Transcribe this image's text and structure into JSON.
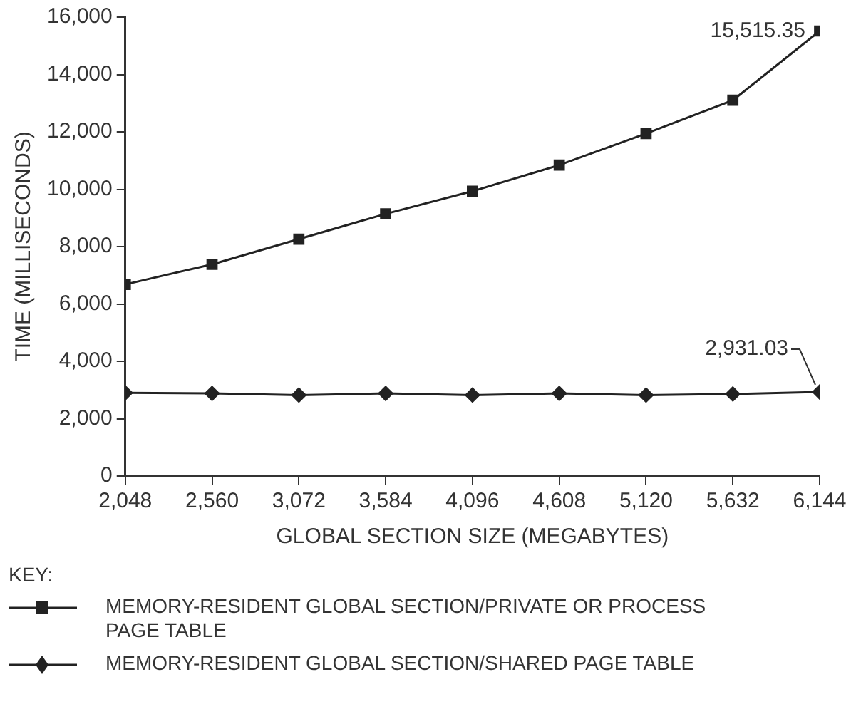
{
  "chart_data": {
    "type": "line",
    "xlabel": "GLOBAL SECTION SIZE (MEGABYTES)",
    "ylabel": "TIME (MILLISECONDS)",
    "legend_title": "KEY:",
    "x": [
      2048,
      2560,
      3072,
      3584,
      4096,
      4608,
      5120,
      5632,
      6144
    ],
    "xlim": [
      2048,
      6144
    ],
    "xticks": [
      {
        "value": 2048,
        "label": "2,048"
      },
      {
        "value": 2560,
        "label": "2,560"
      },
      {
        "value": 3072,
        "label": "3,072"
      },
      {
        "value": 3584,
        "label": "3,584"
      },
      {
        "value": 4096,
        "label": "4,096"
      },
      {
        "value": 4608,
        "label": "4,608"
      },
      {
        "value": 5120,
        "label": "5,120"
      },
      {
        "value": 5632,
        "label": "5,632"
      },
      {
        "value": 6144,
        "label": "6,144"
      }
    ],
    "ylim": [
      0,
      16000
    ],
    "yticks": [
      0,
      {
        "value": 2000,
        "label": "2,000"
      },
      {
        "value": 4000,
        "label": "4,000"
      },
      {
        "value": 6000,
        "label": "6,000"
      },
      {
        "value": 8000,
        "label": "8,000"
      },
      {
        "value": 10000,
        "label": "10,000"
      },
      {
        "value": 12000,
        "label": "12,000"
      },
      {
        "value": 14000,
        "label": "14,000"
      },
      {
        "value": 16000,
        "label": "16,000"
      }
    ],
    "series": [
      {
        "name": "MEMORY-RESIDENT GLOBAL SECTION/PRIVATE OR PROCESS PAGE TABLE",
        "color": "#222222",
        "marker": "square",
        "values": [
          6680,
          7380,
          8260,
          9140,
          9930,
          10840,
          11940,
          13100,
          15515.35
        ]
      },
      {
        "name": "MEMORY-RESIDENT GLOBAL SECTION/SHARED PAGE TABLE",
        "color": "#222222",
        "marker": "diamond",
        "values": [
          2900,
          2880,
          2820,
          2880,
          2820,
          2880,
          2820,
          2860,
          2931.03
        ]
      }
    ],
    "annotations": [
      {
        "text": "15,515.35",
        "x": 6144,
        "y": 15515.35
      },
      {
        "text": "2,931.03",
        "x": 6144,
        "y": 2931.03
      }
    ],
    "grid": false,
    "legend": "bottom",
    "line_style": "solid"
  }
}
